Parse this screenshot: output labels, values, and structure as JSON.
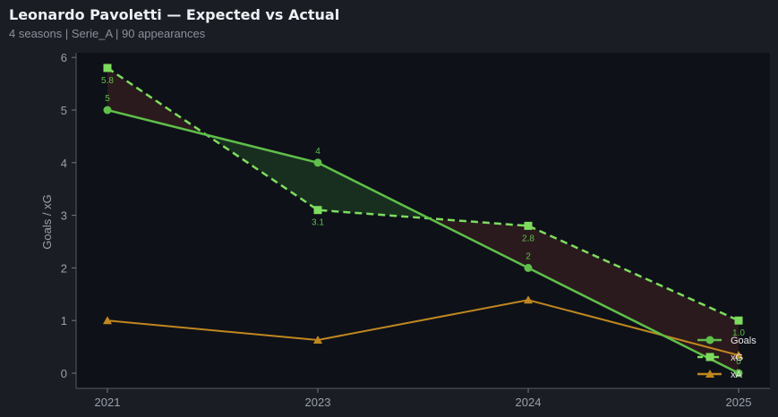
{
  "header": {
    "title": "Leonardo Pavoletti — Expected vs Actual",
    "subtitle": "4 seasons | Serie_A | 90 appearances"
  },
  "chart_data": {
    "type": "line",
    "title": "Leonardo Pavoletti — Expected vs Actual",
    "subtitle": "4 seasons | Serie_A | 90 appearances",
    "xlabel": "",
    "ylabel": "Goals / xG",
    "categories": [
      "2021",
      "2023",
      "2024",
      "2025"
    ],
    "yticks": [
      0,
      1,
      2,
      3,
      4,
      5,
      6
    ],
    "ylim": [
      -0.3,
      6.1
    ],
    "series": [
      {
        "name": "Goals",
        "values": [
          5,
          4,
          2,
          0
        ],
        "labels": [
          "5",
          "4",
          "2",
          "0"
        ],
        "color": "#5fbf4a",
        "style": "solid",
        "marker": "circle"
      },
      {
        "name": "xG",
        "values": [
          5.8,
          3.1,
          2.8,
          1.0
        ],
        "labels": [
          "5.8",
          "3.1",
          "2.8",
          "1.0"
        ],
        "color": "#7ddc5e",
        "style": "dashed",
        "marker": "square"
      },
      {
        "name": "xA",
        "values": [
          1.0,
          0.63,
          1.39,
          0.34
        ],
        "color": "#c0871f",
        "style": "solid",
        "marker": "triangle"
      }
    ],
    "fill": {
      "over_color": "#2e1c1e",
      "under_color": "#1a3320"
    },
    "legend_position": "lower right",
    "grid": false
  }
}
